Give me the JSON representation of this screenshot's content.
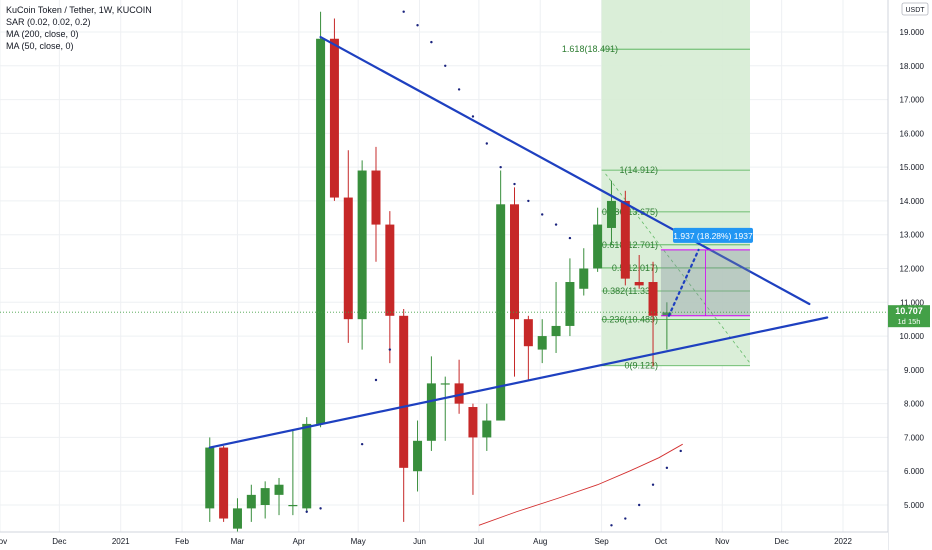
{
  "legend": {
    "title": "KuCoin Token / Tether, 1W, KUCOIN",
    "indicators": [
      "SAR (0.02, 0.02, 0.2)",
      "MA (200, close, 0)",
      "MA (50, close, 0)"
    ]
  },
  "currency_label": "USDT",
  "price_label": {
    "value": "10.707",
    "countdown": "1d 15h"
  },
  "measure_label": "1.937 (18.28%) 1937",
  "colors": {
    "up": "#388e3c",
    "down": "#c62828",
    "trendline": "#1e40c0",
    "fib": "#4caf50",
    "fib_zone": "#d6ecd4",
    "sar": "#1a237e",
    "ma": "#d32f2f",
    "label_bg": "#2196f3",
    "price_bg": "#43a047"
  },
  "chart_data": {
    "type": "candlestick",
    "y_axis": {
      "min": 4.5,
      "max": 19.5,
      "ticks": [
        5,
        6,
        7,
        8,
        9,
        10,
        11,
        12,
        13,
        14,
        15,
        16,
        17,
        18,
        19
      ]
    },
    "x_axis": {
      "ticks": [
        {
          "label": "Nov",
          "date": "2020-11-01"
        },
        {
          "label": "Dec",
          "date": "2020-12-01"
        },
        {
          "label": "2021",
          "date": "2021-01-01"
        },
        {
          "label": "Feb",
          "date": "2021-02-01"
        },
        {
          "label": "Mar",
          "date": "2021-03-01"
        },
        {
          "label": "Apr",
          "date": "2021-04-01"
        },
        {
          "label": "May",
          "date": "2021-05-01"
        },
        {
          "label": "Jun",
          "date": "2021-06-01"
        },
        {
          "label": "Jul",
          "date": "2021-07-01"
        },
        {
          "label": "Aug",
          "date": "2021-08-01"
        },
        {
          "label": "Sep",
          "date": "2021-09-01"
        },
        {
          "label": "Oct",
          "date": "2021-10-01"
        },
        {
          "label": "Nov",
          "date": "2021-11-01"
        },
        {
          "label": "Dec",
          "date": "2021-12-01"
        },
        {
          "label": "2022",
          "date": "2022-01-01"
        }
      ]
    },
    "candles": [
      {
        "date": "2021-02-15",
        "o": 4.9,
        "h": 7.0,
        "l": 4.5,
        "c": 6.7
      },
      {
        "date": "2021-02-22",
        "o": 6.7,
        "h": 6.75,
        "l": 4.5,
        "c": 4.6
      },
      {
        "date": "2021-03-01",
        "o": 4.3,
        "h": 5.2,
        "l": 4.2,
        "c": 4.9
      },
      {
        "date": "2021-03-08",
        "o": 4.9,
        "h": 5.6,
        "l": 4.5,
        "c": 5.3
      },
      {
        "date": "2021-03-15",
        "o": 5.0,
        "h": 5.7,
        "l": 4.6,
        "c": 5.5
      },
      {
        "date": "2021-03-22",
        "o": 5.3,
        "h": 5.8,
        "l": 4.7,
        "c": 5.6
      },
      {
        "date": "2021-03-29",
        "o": 5.0,
        "h": 7.2,
        "l": 4.7,
        "c": 5.0
      },
      {
        "date": "2021-04-05",
        "o": 4.9,
        "h": 7.6,
        "l": 4.8,
        "c": 7.4
      },
      {
        "date": "2021-04-12",
        "o": 7.4,
        "h": 19.6,
        "l": 7.3,
        "c": 18.8
      },
      {
        "date": "2021-04-19",
        "o": 18.8,
        "h": 19.4,
        "l": 14.0,
        "c": 14.1
      },
      {
        "date": "2021-04-26",
        "o": 14.1,
        "h": 15.5,
        "l": 9.8,
        "c": 10.5
      },
      {
        "date": "2021-05-03",
        "o": 10.5,
        "h": 15.2,
        "l": 9.6,
        "c": 14.9
      },
      {
        "date": "2021-05-10",
        "o": 14.9,
        "h": 15.6,
        "l": 12.2,
        "c": 13.3
      },
      {
        "date": "2021-05-17",
        "o": 13.3,
        "h": 13.7,
        "l": 9.2,
        "c": 10.6
      },
      {
        "date": "2021-05-24",
        "o": 10.6,
        "h": 10.8,
        "l": 4.5,
        "c": 6.1
      },
      {
        "date": "2021-05-31",
        "o": 6.0,
        "h": 7.5,
        "l": 5.4,
        "c": 6.9
      },
      {
        "date": "2021-06-07",
        "o": 6.9,
        "h": 9.4,
        "l": 6.6,
        "c": 8.6
      },
      {
        "date": "2021-06-14",
        "o": 8.6,
        "h": 8.8,
        "l": 6.9,
        "c": 8.6
      },
      {
        "date": "2021-06-21",
        "o": 8.6,
        "h": 9.3,
        "l": 7.7,
        "c": 8.0
      },
      {
        "date": "2021-06-28",
        "o": 7.9,
        "h": 8.0,
        "l": 5.3,
        "c": 7.0
      },
      {
        "date": "2021-07-05",
        "o": 7.0,
        "h": 8.0,
        "l": 6.6,
        "c": 7.5
      },
      {
        "date": "2021-07-12",
        "o": 7.5,
        "h": 14.9,
        "l": 7.5,
        "c": 13.9
      },
      {
        "date": "2021-07-19",
        "o": 13.9,
        "h": 14.4,
        "l": 8.8,
        "c": 10.5
      },
      {
        "date": "2021-07-26",
        "o": 10.5,
        "h": 10.6,
        "l": 8.7,
        "c": 9.7
      },
      {
        "date": "2021-08-02",
        "o": 9.6,
        "h": 10.5,
        "l": 9.2,
        "c": 10.0
      },
      {
        "date": "2021-08-09",
        "o": 10.0,
        "h": 11.6,
        "l": 9.5,
        "c": 10.3
      },
      {
        "date": "2021-08-16",
        "o": 10.3,
        "h": 12.3,
        "l": 10.0,
        "c": 11.6
      },
      {
        "date": "2021-08-23",
        "o": 11.4,
        "h": 12.6,
        "l": 11.2,
        "c": 12.0
      },
      {
        "date": "2021-08-30",
        "o": 12.0,
        "h": 13.8,
        "l": 11.9,
        "c": 13.3
      },
      {
        "date": "2021-09-06",
        "o": 13.2,
        "h": 14.6,
        "l": 12.7,
        "c": 14.0
      },
      {
        "date": "2021-09-13",
        "o": 14.0,
        "h": 14.3,
        "l": 11.5,
        "c": 11.7
      },
      {
        "date": "2021-09-20",
        "o": 11.6,
        "h": 12.4,
        "l": 11.4,
        "c": 11.5
      },
      {
        "date": "2021-09-27",
        "o": 11.6,
        "h": 12.2,
        "l": 9.1,
        "c": 10.6
      },
      {
        "date": "2021-10-04",
        "o": 10.6,
        "h": 11.0,
        "l": 9.6,
        "c": 10.7
      }
    ],
    "sar": [
      {
        "date": "2021-04-05",
        "v": 4.8
      },
      {
        "date": "2021-04-12",
        "v": 4.9
      },
      {
        "date": "2021-05-03",
        "v": 6.8
      },
      {
        "date": "2021-05-10",
        "v": 8.7
      },
      {
        "date": "2021-05-17",
        "v": 9.6
      },
      {
        "date": "2021-05-24",
        "v": 19.6
      },
      {
        "date": "2021-05-31",
        "v": 19.2
      },
      {
        "date": "2021-06-07",
        "v": 18.7
      },
      {
        "date": "2021-06-14",
        "v": 18.0
      },
      {
        "date": "2021-06-21",
        "v": 17.3
      },
      {
        "date": "2021-06-28",
        "v": 16.5
      },
      {
        "date": "2021-07-05",
        "v": 15.7
      },
      {
        "date": "2021-07-12",
        "v": 15.0
      },
      {
        "date": "2021-07-19",
        "v": 14.5
      },
      {
        "date": "2021-07-26",
        "v": 14.0
      },
      {
        "date": "2021-08-02",
        "v": 13.6
      },
      {
        "date": "2021-08-09",
        "v": 13.3
      },
      {
        "date": "2021-08-16",
        "v": 12.9
      },
      {
        "date": "2021-09-06",
        "v": 4.4
      },
      {
        "date": "2021-09-13",
        "v": 4.6
      },
      {
        "date": "2021-09-20",
        "v": 5.0
      },
      {
        "date": "2021-09-27",
        "v": 5.6
      },
      {
        "date": "2021-10-04",
        "v": 6.1
      },
      {
        "date": "2021-10-11",
        "v": 6.6
      }
    ],
    "ma200": [
      {
        "date": "2021-07-01",
        "v": 4.4
      },
      {
        "date": "2021-07-20",
        "v": 4.8
      },
      {
        "date": "2021-08-10",
        "v": 5.2
      },
      {
        "date": "2021-08-30",
        "v": 5.6
      },
      {
        "date": "2021-09-15",
        "v": 6.0
      },
      {
        "date": "2021-09-30",
        "v": 6.4
      },
      {
        "date": "2021-10-12",
        "v": 6.8
      }
    ],
    "trendlines": [
      {
        "name": "upper",
        "from": {
          "date": "2021-04-12",
          "v": 18.85
        },
        "to": {
          "date": "2021-12-15",
          "v": 10.95
        }
      },
      {
        "name": "lower",
        "from": {
          "date": "2021-02-15",
          "v": 6.7
        },
        "to": {
          "date": "2021-12-24",
          "v": 10.55
        }
      }
    ],
    "fib": {
      "start_date": "2021-09-01",
      "end_date": "2021-11-15",
      "levels": [
        {
          "ratio": "1.618",
          "price": 18.491,
          "label": "1.618(18.491)"
        },
        {
          "ratio": "1",
          "price": 14.912,
          "label": "1(14.912)"
        },
        {
          "ratio": "0.786",
          "price": 13.675,
          "label": "0.786(13.675)"
        },
        {
          "ratio": "0.618",
          "price": 12.701,
          "label": "0.618(12.701)"
        },
        {
          "ratio": "0.5",
          "price": 12.017,
          "label": "0.5(12.017)"
        },
        {
          "ratio": "0.382",
          "price": 11.334,
          "label": "0.382(11.334)"
        },
        {
          "ratio": "0.236",
          "price": 10.489,
          "label": "0.236(10.489)"
        },
        {
          "ratio": "0",
          "price": 9.122,
          "label": "0(9.122)"
        }
      ]
    },
    "measure": {
      "from": {
        "date": "2021-10-01",
        "v": 10.6
      },
      "to": {
        "date": "2021-11-15",
        "v": 12.55
      },
      "dotted_path": [
        {
          "date": "2021-10-05",
          "v": 10.6
        },
        {
          "date": "2021-10-20",
          "v": 12.55
        }
      ]
    },
    "dashed_diagonal": {
      "from": {
        "date": "2021-09-03",
        "v": 14.8
      },
      "to": {
        "date": "2021-11-15",
        "v": 9.2
      }
    },
    "current_price": 10.707
  }
}
